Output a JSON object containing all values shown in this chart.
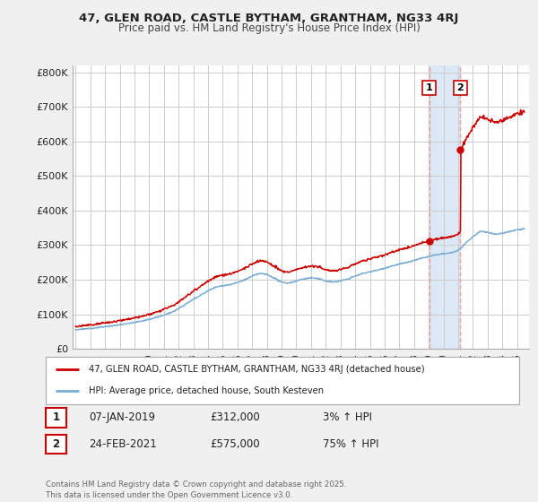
{
  "title_line1": "47, GLEN ROAD, CASTLE BYTHAM, GRANTHAM, NG33 4RJ",
  "title_line2": "Price paid vs. HM Land Registry's House Price Index (HPI)",
  "ylabel_ticks": [
    "£0",
    "£100K",
    "£200K",
    "£300K",
    "£400K",
    "£500K",
    "£600K",
    "£700K",
    "£800K"
  ],
  "ylabel_values": [
    0,
    100000,
    200000,
    300000,
    400000,
    500000,
    600000,
    700000,
    800000
  ],
  "ylim": [
    0,
    820000
  ],
  "xlim_start": 1994.8,
  "xlim_end": 2025.8,
  "background_color": "#f0f0f0",
  "plot_background": "#ffffff",
  "grid_color": "#cccccc",
  "line1_color": "#cc0000",
  "line2_color": "#7aadd4",
  "vline_color": "#e8a0a0",
  "shade_color": "#dce8f5",
  "marker1_color": "#cc0000",
  "legend_label1": "47, GLEN ROAD, CASTLE BYTHAM, GRANTHAM, NG33 4RJ (detached house)",
  "legend_label2": "HPI: Average price, detached house, South Kesteven",
  "annotation1_num": "1",
  "annotation1_date": "07-JAN-2019",
  "annotation1_price": "£312,000",
  "annotation1_pct": "3% ↑ HPI",
  "annotation2_num": "2",
  "annotation2_date": "24-FEB-2021",
  "annotation2_price": "£575,000",
  "annotation2_pct": "75% ↑ HPI",
  "footer": "Contains HM Land Registry data © Crown copyright and database right 2025.\nThis data is licensed under the Open Government Licence v3.0.",
  "sale1_x": 2019.03,
  "sale1_y": 312000,
  "sale2_x": 2021.15,
  "sale2_y": 575000
}
